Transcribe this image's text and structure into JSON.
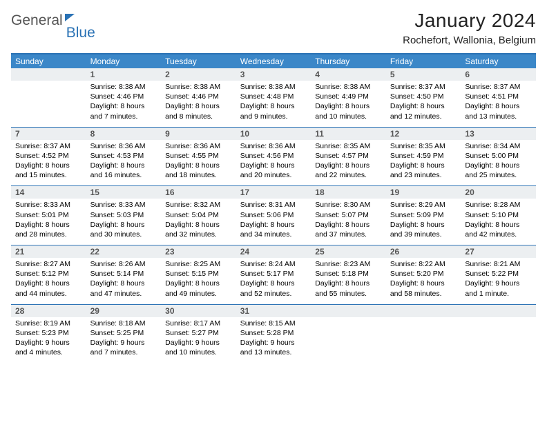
{
  "logo": {
    "text1": "General",
    "text2": "Blue"
  },
  "title": "January 2024",
  "location": "Rochefort, Wallonia, Belgium",
  "colors": {
    "brand": "#2a72b5",
    "header_bg": "#3b87c8",
    "header_fg": "#ffffff",
    "num_bg": "#eceff1",
    "num_fg": "#555555",
    "rule": "#2a72b5",
    "text": "#000000"
  },
  "day_names": [
    "Sunday",
    "Monday",
    "Tuesday",
    "Wednesday",
    "Thursday",
    "Friday",
    "Saturday"
  ],
  "weeks": [
    {
      "nums": [
        "",
        "1",
        "2",
        "3",
        "4",
        "5",
        "6"
      ],
      "cells": [
        {
          "sunrise": "",
          "sunset": "",
          "daylight1": "",
          "daylight2": ""
        },
        {
          "sunrise": "Sunrise: 8:38 AM",
          "sunset": "Sunset: 4:46 PM",
          "daylight1": "Daylight: 8 hours",
          "daylight2": "and 7 minutes."
        },
        {
          "sunrise": "Sunrise: 8:38 AM",
          "sunset": "Sunset: 4:46 PM",
          "daylight1": "Daylight: 8 hours",
          "daylight2": "and 8 minutes."
        },
        {
          "sunrise": "Sunrise: 8:38 AM",
          "sunset": "Sunset: 4:48 PM",
          "daylight1": "Daylight: 8 hours",
          "daylight2": "and 9 minutes."
        },
        {
          "sunrise": "Sunrise: 8:38 AM",
          "sunset": "Sunset: 4:49 PM",
          "daylight1": "Daylight: 8 hours",
          "daylight2": "and 10 minutes."
        },
        {
          "sunrise": "Sunrise: 8:37 AM",
          "sunset": "Sunset: 4:50 PM",
          "daylight1": "Daylight: 8 hours",
          "daylight2": "and 12 minutes."
        },
        {
          "sunrise": "Sunrise: 8:37 AM",
          "sunset": "Sunset: 4:51 PM",
          "daylight1": "Daylight: 8 hours",
          "daylight2": "and 13 minutes."
        }
      ]
    },
    {
      "nums": [
        "7",
        "8",
        "9",
        "10",
        "11",
        "12",
        "13"
      ],
      "cells": [
        {
          "sunrise": "Sunrise: 8:37 AM",
          "sunset": "Sunset: 4:52 PM",
          "daylight1": "Daylight: 8 hours",
          "daylight2": "and 15 minutes."
        },
        {
          "sunrise": "Sunrise: 8:36 AM",
          "sunset": "Sunset: 4:53 PM",
          "daylight1": "Daylight: 8 hours",
          "daylight2": "and 16 minutes."
        },
        {
          "sunrise": "Sunrise: 8:36 AM",
          "sunset": "Sunset: 4:55 PM",
          "daylight1": "Daylight: 8 hours",
          "daylight2": "and 18 minutes."
        },
        {
          "sunrise": "Sunrise: 8:36 AM",
          "sunset": "Sunset: 4:56 PM",
          "daylight1": "Daylight: 8 hours",
          "daylight2": "and 20 minutes."
        },
        {
          "sunrise": "Sunrise: 8:35 AM",
          "sunset": "Sunset: 4:57 PM",
          "daylight1": "Daylight: 8 hours",
          "daylight2": "and 22 minutes."
        },
        {
          "sunrise": "Sunrise: 8:35 AM",
          "sunset": "Sunset: 4:59 PM",
          "daylight1": "Daylight: 8 hours",
          "daylight2": "and 23 minutes."
        },
        {
          "sunrise": "Sunrise: 8:34 AM",
          "sunset": "Sunset: 5:00 PM",
          "daylight1": "Daylight: 8 hours",
          "daylight2": "and 25 minutes."
        }
      ]
    },
    {
      "nums": [
        "14",
        "15",
        "16",
        "17",
        "18",
        "19",
        "20"
      ],
      "cells": [
        {
          "sunrise": "Sunrise: 8:33 AM",
          "sunset": "Sunset: 5:01 PM",
          "daylight1": "Daylight: 8 hours",
          "daylight2": "and 28 minutes."
        },
        {
          "sunrise": "Sunrise: 8:33 AM",
          "sunset": "Sunset: 5:03 PM",
          "daylight1": "Daylight: 8 hours",
          "daylight2": "and 30 minutes."
        },
        {
          "sunrise": "Sunrise: 8:32 AM",
          "sunset": "Sunset: 5:04 PM",
          "daylight1": "Daylight: 8 hours",
          "daylight2": "and 32 minutes."
        },
        {
          "sunrise": "Sunrise: 8:31 AM",
          "sunset": "Sunset: 5:06 PM",
          "daylight1": "Daylight: 8 hours",
          "daylight2": "and 34 minutes."
        },
        {
          "sunrise": "Sunrise: 8:30 AM",
          "sunset": "Sunset: 5:07 PM",
          "daylight1": "Daylight: 8 hours",
          "daylight2": "and 37 minutes."
        },
        {
          "sunrise": "Sunrise: 8:29 AM",
          "sunset": "Sunset: 5:09 PM",
          "daylight1": "Daylight: 8 hours",
          "daylight2": "and 39 minutes."
        },
        {
          "sunrise": "Sunrise: 8:28 AM",
          "sunset": "Sunset: 5:10 PM",
          "daylight1": "Daylight: 8 hours",
          "daylight2": "and 42 minutes."
        }
      ]
    },
    {
      "nums": [
        "21",
        "22",
        "23",
        "24",
        "25",
        "26",
        "27"
      ],
      "cells": [
        {
          "sunrise": "Sunrise: 8:27 AM",
          "sunset": "Sunset: 5:12 PM",
          "daylight1": "Daylight: 8 hours",
          "daylight2": "and 44 minutes."
        },
        {
          "sunrise": "Sunrise: 8:26 AM",
          "sunset": "Sunset: 5:14 PM",
          "daylight1": "Daylight: 8 hours",
          "daylight2": "and 47 minutes."
        },
        {
          "sunrise": "Sunrise: 8:25 AM",
          "sunset": "Sunset: 5:15 PM",
          "daylight1": "Daylight: 8 hours",
          "daylight2": "and 49 minutes."
        },
        {
          "sunrise": "Sunrise: 8:24 AM",
          "sunset": "Sunset: 5:17 PM",
          "daylight1": "Daylight: 8 hours",
          "daylight2": "and 52 minutes."
        },
        {
          "sunrise": "Sunrise: 8:23 AM",
          "sunset": "Sunset: 5:18 PM",
          "daylight1": "Daylight: 8 hours",
          "daylight2": "and 55 minutes."
        },
        {
          "sunrise": "Sunrise: 8:22 AM",
          "sunset": "Sunset: 5:20 PM",
          "daylight1": "Daylight: 8 hours",
          "daylight2": "and 58 minutes."
        },
        {
          "sunrise": "Sunrise: 8:21 AM",
          "sunset": "Sunset: 5:22 PM",
          "daylight1": "Daylight: 9 hours",
          "daylight2": "and 1 minute."
        }
      ]
    },
    {
      "nums": [
        "28",
        "29",
        "30",
        "31",
        "",
        "",
        ""
      ],
      "cells": [
        {
          "sunrise": "Sunrise: 8:19 AM",
          "sunset": "Sunset: 5:23 PM",
          "daylight1": "Daylight: 9 hours",
          "daylight2": "and 4 minutes."
        },
        {
          "sunrise": "Sunrise: 8:18 AM",
          "sunset": "Sunset: 5:25 PM",
          "daylight1": "Daylight: 9 hours",
          "daylight2": "and 7 minutes."
        },
        {
          "sunrise": "Sunrise: 8:17 AM",
          "sunset": "Sunset: 5:27 PM",
          "daylight1": "Daylight: 9 hours",
          "daylight2": "and 10 minutes."
        },
        {
          "sunrise": "Sunrise: 8:15 AM",
          "sunset": "Sunset: 5:28 PM",
          "daylight1": "Daylight: 9 hours",
          "daylight2": "and 13 minutes."
        },
        {
          "sunrise": "",
          "sunset": "",
          "daylight1": "",
          "daylight2": ""
        },
        {
          "sunrise": "",
          "sunset": "",
          "daylight1": "",
          "daylight2": ""
        },
        {
          "sunrise": "",
          "sunset": "",
          "daylight1": "",
          "daylight2": ""
        }
      ]
    }
  ]
}
